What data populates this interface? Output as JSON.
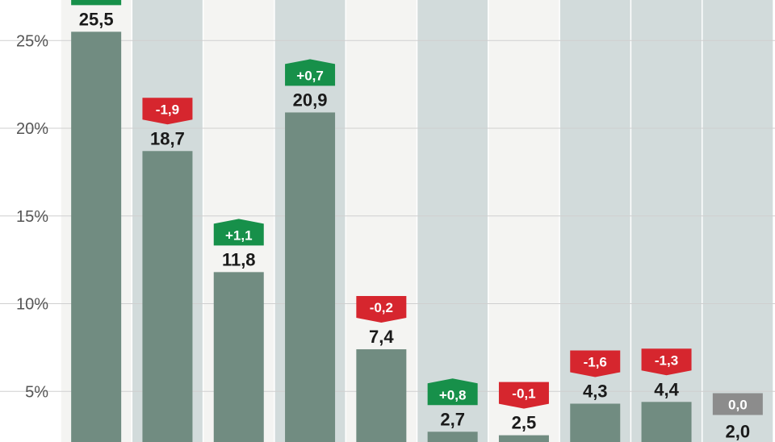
{
  "chart_data": {
    "type": "bar",
    "title": "",
    "xlabel": "",
    "ylabel": "",
    "y_ticks": [
      "5%",
      "10%",
      "15%",
      "20%",
      "25%"
    ],
    "y_tick_values": [
      5,
      10,
      15,
      20,
      25
    ],
    "grid": true,
    "values": [
      25.5,
      18.7,
      11.8,
      20.9,
      7.4,
      2.7,
      2.5,
      4.3,
      4.4,
      2.0
    ],
    "value_labels": [
      "25,5",
      "18,7",
      "11,8",
      "20,9",
      "7,4",
      "2,7",
      "2,5",
      "4,3",
      "4,4",
      "2,0"
    ],
    "changes": [
      null,
      -1.9,
      1.1,
      0.7,
      -0.2,
      0.8,
      -0.1,
      -1.6,
      -1.3,
      0.0
    ],
    "change_labels": [
      "",
      "-1,9",
      "+1,1",
      "+0,7",
      "-0,2",
      "+0,8",
      "-0,1",
      "-1,6",
      "-1,3",
      "0,0"
    ],
    "colors": {
      "bar": "#718c81",
      "increase": "#17904a",
      "decrease": "#d6262e",
      "unchanged": "#8c8c8c",
      "column_band_light": "#f4f4f2",
      "column_band_dark": "#d2dbdb",
      "gridline": "#cfcfcf"
    }
  }
}
